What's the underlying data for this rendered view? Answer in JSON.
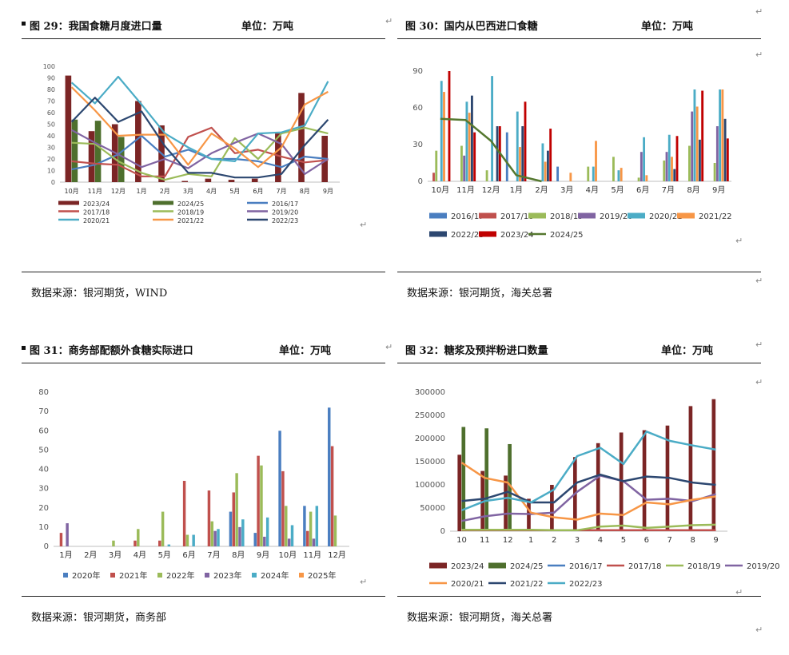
{
  "panels": [
    {
      "title": "图 29：我国食糖月度进口量",
      "unit": "单位：万吨",
      "source": "数据来源：银河期货，WIND"
    },
    {
      "title": "图 30：国内从巴西进口食糖",
      "unit": "单位：万吨",
      "source": "数据来源：银河期货，海关总署"
    },
    {
      "title": "图 31：商务部配额外食糖实际进口",
      "unit": "单位：万吨",
      "source": "数据来源：银河期货，商务部"
    },
    {
      "title": "图 32：糖浆及预拌粉进口数量",
      "unit": "单位：万吨",
      "source": "数据来源：银河期货，海关总署"
    }
  ],
  "chart_data": [
    {
      "type": "line",
      "categories": [
        "10月",
        "11月",
        "12月",
        "1月",
        "2月",
        "3月",
        "4月",
        "5月",
        "6月",
        "7月",
        "8月",
        "9月"
      ],
      "ylim": [
        0,
        100
      ],
      "yticks": [
        0,
        10,
        20,
        30,
        40,
        50,
        60,
        70,
        80,
        90,
        100
      ],
      "legend_position": "bottom",
      "bars": [
        {
          "name": "2023/24",
          "color": "#7b2525",
          "values": [
            92,
            44,
            50,
            70,
            49,
            1,
            3,
            2,
            3,
            42,
            77,
            40
          ]
        },
        {
          "name": "2024/25",
          "color": "#4e6f2d",
          "values": [
            54,
            53,
            39,
            null,
            null,
            null,
            null,
            null,
            null,
            null,
            null,
            null
          ]
        }
      ],
      "series": [
        {
          "name": "2016/17",
          "color": "#4a7ec0",
          "values": [
            11,
            15,
            24,
            40,
            22,
            28,
            20,
            20,
            18,
            13,
            22,
            20
          ]
        },
        {
          "name": "2017/18",
          "color": "#c0504d",
          "values": [
            18,
            16,
            15,
            5,
            5,
            39,
            47,
            25,
            28,
            22,
            17,
            19
          ]
        },
        {
          "name": "2018/19",
          "color": "#9bbb59",
          "values": [
            34,
            33,
            18,
            8,
            2,
            7,
            5,
            38,
            20,
            42,
            47,
            42
          ]
        },
        {
          "name": "2019/20",
          "color": "#8064a2",
          "values": [
            45,
            34,
            24,
            13,
            20,
            12,
            25,
            34,
            42,
            33,
            7,
            20
          ]
        },
        {
          "name": "2020/21",
          "color": "#4bacc6",
          "values": [
            86,
            68,
            91,
            67,
            42,
            30,
            20,
            18,
            42,
            43,
            49,
            87
          ]
        },
        {
          "name": "2021/22",
          "color": "#f79646",
          "values": [
            82,
            62,
            40,
            41,
            41,
            15,
            42,
            29,
            13,
            30,
            67,
            78
          ]
        },
        {
          "name": "2022/23",
          "color": "#2c4770",
          "values": [
            52,
            73,
            52,
            61,
            31,
            8,
            8,
            4,
            4,
            7,
            32,
            54
          ]
        }
      ]
    },
    {
      "type": "bar",
      "categories": [
        "10月",
        "11月",
        "12月",
        "1月",
        "2月",
        "3月",
        "4月",
        "5月",
        "6月",
        "7月",
        "8月",
        "9月"
      ],
      "ylim": [
        0,
        90
      ],
      "yticks": [
        0,
        30,
        60,
        90
      ],
      "legend_position": "bottom",
      "series": [
        {
          "name": "2016/17",
          "color": "#4a7ec0",
          "values": [
            0,
            0,
            0,
            40,
            0,
            12,
            0,
            0,
            0,
            0,
            0,
            0
          ]
        },
        {
          "name": "2017/18",
          "color": "#c0504d",
          "values": [
            7,
            0,
            0,
            0,
            0,
            0,
            0,
            0,
            0,
            0,
            0,
            0
          ]
        },
        {
          "name": "2018/19",
          "color": "#9bbb59",
          "values": [
            25,
            29,
            9,
            0,
            0,
            0,
            12,
            20,
            3,
            17,
            29,
            15
          ]
        },
        {
          "name": "2019/20",
          "color": "#8064a2",
          "values": [
            0,
            21,
            0,
            0,
            0,
            0,
            0,
            0,
            24,
            24,
            57,
            45
          ]
        },
        {
          "name": "2020/21",
          "color": "#4bacc6",
          "values": [
            82,
            65,
            86,
            57,
            31,
            0,
            12,
            9,
            36,
            38,
            75,
            75
          ]
        },
        {
          "name": "2021/22",
          "color": "#f79646",
          "values": [
            73,
            56,
            0,
            28,
            16,
            7,
            33,
            11,
            5,
            20,
            61,
            75
          ]
        },
        {
          "name": "2022/23",
          "color": "#2c4770",
          "values": [
            0,
            70,
            45,
            45,
            25,
            0,
            0,
            0,
            0,
            10,
            34,
            51
          ]
        },
        {
          "name": "2023/24",
          "color": "#c00000",
          "values": [
            90,
            40,
            45,
            65,
            43,
            0,
            0,
            0,
            0,
            37,
            74,
            35
          ]
        },
        {
          "name": "2024/25",
          "color": "#55782f",
          "type": "line",
          "values": [
            51,
            50,
            33,
            5,
            0,
            null,
            null,
            null,
            null,
            null,
            null,
            null
          ]
        }
      ]
    },
    {
      "type": "bar",
      "categories": [
        "1月",
        "2月",
        "3月",
        "4月",
        "5月",
        "6月",
        "7月",
        "8月",
        "9月",
        "10月",
        "11月",
        "12月"
      ],
      "ylim": [
        0,
        80
      ],
      "yticks": [
        0,
        10,
        20,
        30,
        40,
        50,
        60,
        70,
        80
      ],
      "legend_position": "bottom",
      "series": [
        {
          "name": "2020年",
          "color": "#4a7ec0",
          "values": [
            0,
            0,
            0,
            0,
            0,
            0,
            0,
            18,
            7,
            60,
            21,
            72
          ]
        },
        {
          "name": "2021年",
          "color": "#c0504d",
          "values": [
            7,
            0,
            0,
            3,
            3,
            34,
            29,
            28,
            47,
            39,
            8,
            52
          ]
        },
        {
          "name": "2022年",
          "color": "#9bbb59",
          "values": [
            0,
            0,
            3,
            9,
            18,
            6,
            13,
            38,
            42,
            21,
            18,
            16
          ]
        },
        {
          "name": "2023年",
          "color": "#8064a2",
          "values": [
            12,
            0,
            0,
            0,
            0,
            0,
            8,
            10,
            5,
            4,
            4,
            0
          ]
        },
        {
          "name": "2024年",
          "color": "#4bacc6",
          "values": [
            0,
            0,
            0,
            0,
            1,
            6,
            9,
            14,
            15,
            11,
            21,
            0
          ]
        },
        {
          "name": "2025年",
          "color": "#f79646",
          "values": [
            0,
            0,
            0,
            0,
            0,
            0,
            0,
            0,
            0,
            0,
            0,
            0
          ]
        }
      ]
    },
    {
      "type": "line",
      "categories": [
        "10",
        "11",
        "12",
        "1",
        "2",
        "3",
        "4",
        "5",
        "6",
        "7",
        "8",
        "9"
      ],
      "ylim": [
        0,
        300000
      ],
      "yticks": [
        0,
        50000,
        100000,
        150000,
        200000,
        250000,
        300000
      ],
      "legend_position": "bottom",
      "bars": [
        {
          "name": "2023/24",
          "color": "#7b2525",
          "values": [
            165000,
            130000,
            120000,
            70000,
            100000,
            160000,
            190000,
            213000,
            218000,
            228000,
            270000,
            285000
          ]
        },
        {
          "name": "2024/25",
          "color": "#4e6f2d",
          "values": [
            225000,
            222000,
            188000,
            null,
            null,
            null,
            null,
            null,
            null,
            null,
            null,
            null
          ]
        }
      ],
      "series": [
        {
          "name": "2016/17",
          "color": "#4a7ec0",
          "values": [
            null,
            null,
            null,
            null,
            null,
            null,
            null,
            null,
            null,
            null,
            null,
            null
          ]
        },
        {
          "name": "2017/18",
          "color": "#c0504d",
          "values": [
            2000,
            2000,
            2000,
            2000,
            2000,
            2000,
            2000,
            2000,
            2000,
            2000,
            2000,
            2000
          ]
        },
        {
          "name": "2018/19",
          "color": "#9bbb59",
          "values": [
            3000,
            3000,
            3000,
            3000,
            2000,
            2000,
            10000,
            12000,
            7000,
            10000,
            13000,
            14000
          ]
        },
        {
          "name": "2019/20",
          "color": "#8064a2",
          "values": [
            22000,
            32000,
            38000,
            37000,
            40000,
            85000,
            120000,
            108000,
            68000,
            70000,
            65000,
            80000
          ]
        },
        {
          "name": "2020/21",
          "color": "#f79646",
          "values": [
            148000,
            115000,
            105000,
            40000,
            30000,
            25000,
            38000,
            35000,
            62000,
            58000,
            68000,
            75000
          ]
        },
        {
          "name": "2021/22",
          "color": "#2c4770",
          "values": [
            65000,
            70000,
            85000,
            62000,
            62000,
            105000,
            122000,
            108000,
            118000,
            115000,
            105000,
            100000
          ]
        },
        {
          "name": "2022/23",
          "color": "#4bacc6",
          "values": [
            45000,
            65000,
            72000,
            62000,
            90000,
            162000,
            180000,
            145000,
            215000,
            195000,
            185000,
            176000
          ]
        }
      ]
    }
  ]
}
